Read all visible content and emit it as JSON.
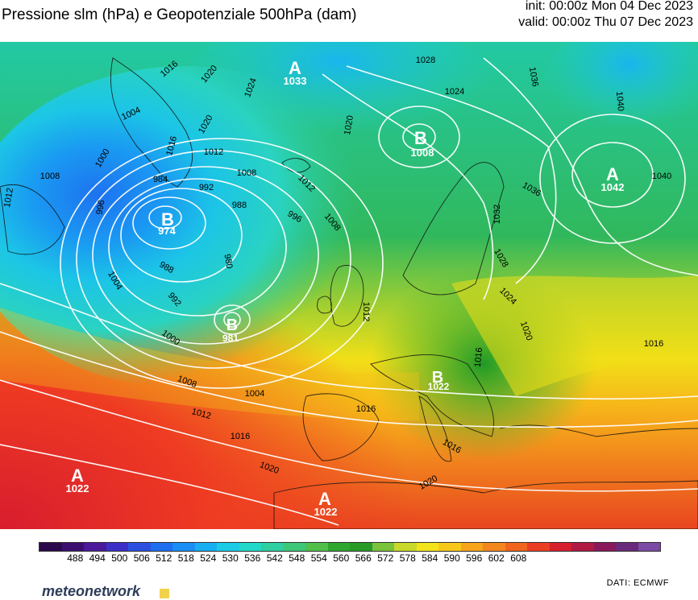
{
  "header": {
    "title": "Pressione slm (hPa) e Geopotenziale 500hPa (dam)",
    "init": "init: 00:00z Mon 04 Dec 2023",
    "valid": "valid: 00:00z Thu 07 Dec 2023"
  },
  "centers": [
    {
      "letter": "A",
      "value": "1033"
    },
    {
      "letter": "B",
      "value": "1008"
    },
    {
      "letter": "A",
      "value": "1042"
    },
    {
      "letter": "B",
      "value": "974"
    },
    {
      "letter": "B",
      "value": "981"
    },
    {
      "letter": "B",
      "value": "1022"
    },
    {
      "letter": "A",
      "value": "1022"
    },
    {
      "letter": "A",
      "value": "1022"
    }
  ],
  "isobar_labels": [
    "1012",
    "1016",
    "1020",
    "1024",
    "1004",
    "1000",
    "1008",
    "1012",
    "1020",
    "1016",
    "1008",
    "996",
    "984",
    "992",
    "988",
    "996",
    "1008",
    "1012",
    "980",
    "988",
    "992",
    "1000",
    "1004",
    "1008",
    "1012",
    "1016",
    "1004",
    "1016",
    "1020",
    "1020",
    "1028",
    "1024",
    "1036",
    "1040",
    "1040",
    "1036",
    "1032",
    "1028",
    "1024",
    "1020",
    "1016",
    "1012",
    "1016",
    "1016",
    "1020",
    "1012"
  ],
  "colorbar": {
    "ticks": [
      "488",
      "494",
      "500",
      "506",
      "512",
      "518",
      "524",
      "530",
      "536",
      "542",
      "548",
      "554",
      "560",
      "566",
      "572",
      "578",
      "584",
      "590",
      "596",
      "602",
      "608"
    ],
    "colors": [
      "#2a0a4a",
      "#3a0f6e",
      "#4a1a9a",
      "#3b2fc8",
      "#2c4fe0",
      "#1e6ef0",
      "#1a8ef5",
      "#18aef2",
      "#1ccbe5",
      "#22d8c8",
      "#2ecfa0",
      "#3cc878",
      "#52bf4a",
      "#2fa62e",
      "#279a28",
      "#7ac23a",
      "#c8d82c",
      "#f2e41a",
      "#f7c81a",
      "#f6a41c",
      "#f4861e",
      "#f0641e",
      "#ea3e22",
      "#d6202e",
      "#b01a44",
      "#8a1a5c",
      "#6a2a7a",
      "#7a4aa4"
    ],
    "source": "DATI:  ECMWF"
  },
  "brand": "meteonetwork"
}
